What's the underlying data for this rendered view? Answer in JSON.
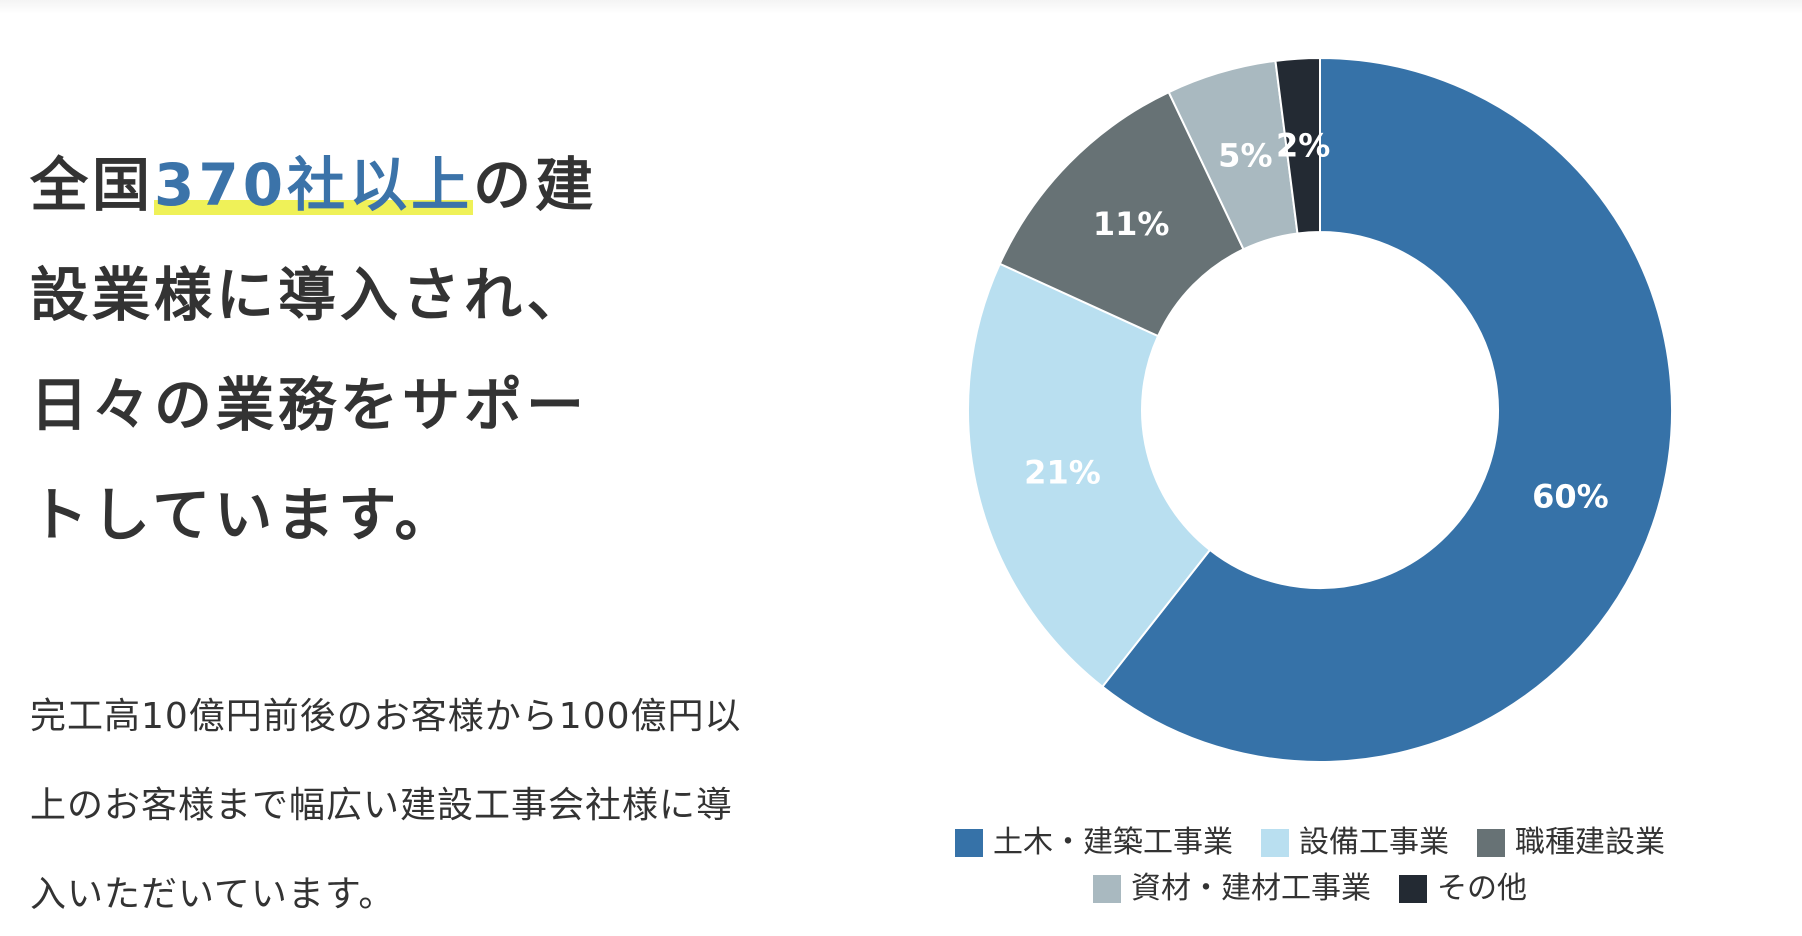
{
  "headline": {
    "pre": "全国",
    "highlight": "370社以上",
    "post": "の建設業様に導入され、日々の業務をサポートしています。"
  },
  "body_text": "完工高10億円前後のお客様から100億円以上のお客様まで幅広い建設工事会社様に導入いただいています。",
  "colors": {
    "highlight_text": "#3b73a9",
    "highlight_marker": "#eff158"
  },
  "chart_data": {
    "type": "pie",
    "donut": true,
    "categories": [
      "土木・建築工事業",
      "設備工事業",
      "職種建設業",
      "資材・建材工事業",
      "その他"
    ],
    "values": [
      60,
      21,
      11,
      5,
      2
    ],
    "labels": [
      "60%",
      "21%",
      "11%",
      "5%",
      "2%"
    ],
    "colors": [
      "#3672a8",
      "#b9dff0",
      "#677275",
      "#a9b9c0",
      "#232a33"
    ],
    "legend_position": "bottom"
  }
}
